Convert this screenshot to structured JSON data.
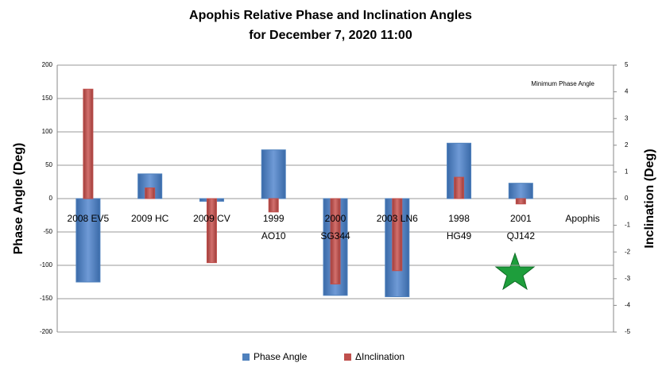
{
  "chart_data": {
    "type": "bar",
    "title": "Apophis Relative Phase and Inclination Angles",
    "subtitle": "for December 7, 2020 11:00",
    "categories": [
      "2008 EV5",
      "2009 HC",
      "2009 CV",
      "1999 AO10",
      "2000 SG344",
      "2003 LN6",
      "1998 HG49",
      "2001 QJ142",
      "Apophis"
    ],
    "series": [
      {
        "name": "Phase Angle",
        "color": "#4f81bd",
        "values": [
          -125,
          37,
          -4,
          73,
          -145,
          -147,
          83,
          23,
          null
        ]
      },
      {
        "name": "ΔInclination",
        "color": "#c0504d",
        "axis": "y2",
        "values": [
          4.1,
          0.4,
          -2.4,
          -0.5,
          -3.2,
          -2.7,
          0.8,
          -0.2,
          null
        ]
      }
    ],
    "ylabel": "Phase Angle (Deg)",
    "y2label": "Inclination (Deg)",
    "ylim": [
      -200,
      200
    ],
    "yticks": [
      -200,
      -150,
      -100,
      -50,
      0,
      50,
      100,
      150,
      200
    ],
    "y2lim": [
      -5,
      5
    ],
    "y2ticks": [
      -5,
      -4,
      -3,
      -2,
      -1,
      0,
      1,
      2,
      3,
      4,
      5
    ],
    "annotation": "Minimum Phase Angle",
    "grid": true,
    "legend": "bottom"
  }
}
